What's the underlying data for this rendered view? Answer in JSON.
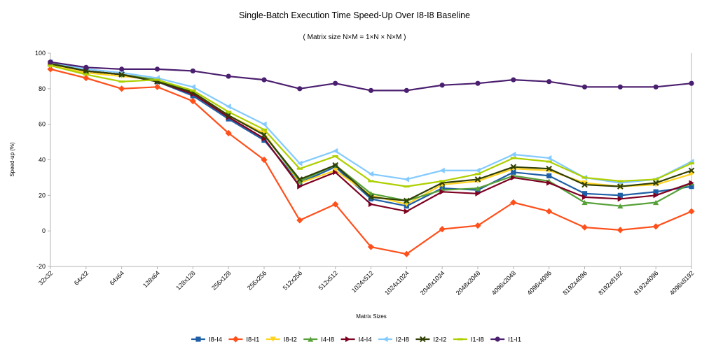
{
  "chart_data": {
    "type": "line",
    "title": "Single-Batch Execution Time Speed-Up Over I8-I8 Baseline",
    "subtitle": "( Matrix size N×M = 1×N × N×M )",
    "xlabel": "Matrix Sizes",
    "ylabel": "Speed-up (%)",
    "ylim": [
      -20,
      100
    ],
    "yticks": [
      -20,
      0,
      20,
      40,
      60,
      80,
      100
    ],
    "grid": "none",
    "legend_position": "bottom",
    "categories": [
      "32x32",
      "64x32",
      "64x64",
      "128x64",
      "128x128",
      "256x128",
      "256x256",
      "512x256",
      "512x512",
      "1024x512",
      "1024x1024",
      "2048x1024",
      "2048x2048",
      "4096x2048",
      "4096x4096",
      "8192x4096",
      "8192x8192",
      "8192x4096",
      "4096x8192"
    ],
    "series": [
      {
        "name": "I8-I4",
        "color": "#1f5fa6",
        "marker": "square",
        "values": [
          94,
          90,
          88,
          84,
          76,
          63,
          51,
          27,
          36,
          18,
          14,
          24,
          23,
          33,
          31,
          21,
          20,
          22,
          25
        ]
      },
      {
        "name": "I8-I1",
        "color": "#ff4f1a",
        "marker": "diamond",
        "values": [
          91,
          86,
          80,
          81,
          73,
          55,
          40,
          6,
          15,
          -9,
          -13,
          1,
          3,
          16,
          11,
          2,
          0.5,
          2.5,
          11
        ]
      },
      {
        "name": "I8-I2",
        "color": "#ffd320",
        "marker": "triangle-down",
        "values": [
          93,
          89,
          87,
          85,
          78,
          65,
          55,
          27,
          34,
          20,
          15,
          26,
          28,
          35,
          34,
          27,
          25,
          26,
          32
        ]
      },
      {
        "name": "I4-I8",
        "color": "#57a13a",
        "marker": "triangle-up",
        "values": [
          95,
          90,
          88,
          85,
          78,
          65,
          54,
          28,
          37,
          21,
          17,
          23,
          24,
          31,
          28,
          16,
          14,
          16,
          27
        ]
      },
      {
        "name": "I4-I4",
        "color": "#7e0021",
        "marker": "triangle-right",
        "values": [
          94,
          90,
          88,
          84,
          77,
          64,
          52,
          25,
          33,
          15,
          11,
          22,
          21,
          30,
          27,
          19,
          18,
          20,
          27
        ]
      },
      {
        "name": "I2-I8",
        "color": "#83caff",
        "marker": "triangle-left",
        "values": [
          95,
          91,
          89,
          86,
          81,
          70,
          60,
          38,
          45,
          32,
          29,
          34,
          34,
          43,
          41,
          30,
          27,
          29,
          39
        ]
      },
      {
        "name": "I2-I2",
        "color": "#314004",
        "marker": "x",
        "values": [
          94,
          90,
          88,
          84,
          78,
          65,
          54,
          29,
          37,
          19,
          17,
          27,
          29,
          36,
          35,
          26,
          25,
          27,
          34
        ]
      },
      {
        "name": "I1-I8",
        "color": "#aecf00",
        "marker": "bar",
        "values": [
          93,
          88,
          84,
          85,
          79,
          67,
          57,
          35,
          42,
          28,
          25,
          28,
          32,
          41,
          39,
          30,
          28,
          29,
          38
        ]
      },
      {
        "name": "I1-I1",
        "color": "#4b1f6f",
        "marker": "circle",
        "values": [
          95,
          92,
          91,
          91,
          90,
          87,
          85,
          80,
          83,
          79,
          79,
          82,
          83,
          85,
          84,
          81,
          81,
          81,
          83
        ]
      }
    ]
  }
}
